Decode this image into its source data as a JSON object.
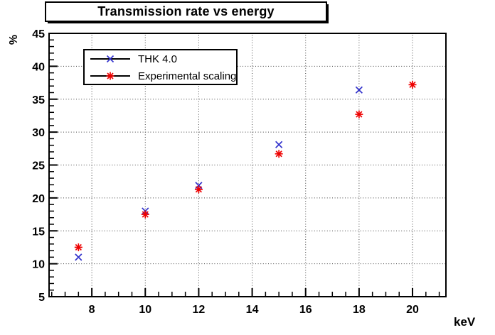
{
  "chart_data": {
    "type": "scatter",
    "title": "Transmission rate vs energy",
    "xlabel": "keV",
    "ylabel": "%",
    "xlim": [
      6.4,
      21.25
    ],
    "ylim": [
      5,
      45
    ],
    "x_major_ticks": [
      8,
      10,
      12,
      14,
      16,
      18,
      20
    ],
    "x_minor_tick_step": 0.5,
    "y_major_ticks": [
      5,
      10,
      15,
      20,
      25,
      30,
      35,
      40,
      45
    ],
    "y_minor_tick_step": 1,
    "grid": {
      "style": "dotted",
      "color": "#444444",
      "on_major_ticks": true
    },
    "frame_color": "#000000",
    "background_color": "#ffffff",
    "legend_position": "top-left",
    "series": [
      {
        "name": "THK 4.0",
        "marker": "x-cross",
        "color": "#3333cc",
        "x": [
          7.5,
          10,
          12,
          15,
          18
        ],
        "y": [
          11.0,
          18.0,
          21.9,
          28.1,
          36.4
        ]
      },
      {
        "name": "Experimental scaling",
        "marker": "asterisk",
        "color": "#ee0000",
        "x": [
          7.5,
          10,
          12,
          15,
          18,
          20
        ],
        "y": [
          12.5,
          17.5,
          21.3,
          26.7,
          32.7,
          37.2
        ]
      }
    ]
  }
}
